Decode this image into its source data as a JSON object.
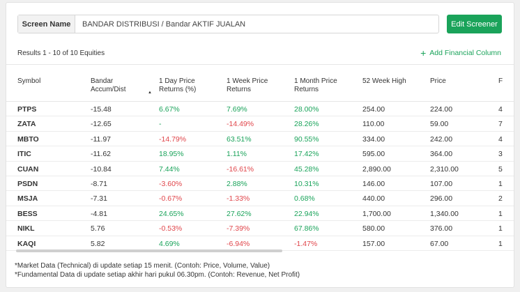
{
  "screen": {
    "label": "Screen Name",
    "value": "BANDAR DISTRIBUSI / Bandar AKTIF JUALAN",
    "edit_button": "Edit Screener"
  },
  "results_text": "Results 1 - 10 of 10 Equities",
  "add_column_label": "Add Financial Column",
  "table": {
    "headers": {
      "symbol": "Symbol",
      "bandar_1": "Bandar",
      "bandar_2": "Accum/Dist",
      "d1_1": "1 Day Price",
      "d1_2": "Returns (%)",
      "w1_1": "1 Week Price",
      "w1_2": "Returns",
      "m1_1": "1 Month Price",
      "m1_2": "Returns",
      "high": "52 Week High",
      "price": "Price",
      "extra": "F"
    },
    "rows": [
      {
        "symbol": "PTPS",
        "bandar": "-15.48",
        "d1": "6.67%",
        "w1": "7.69%",
        "m1": "28.00%",
        "high": "254.00",
        "price": "224.00",
        "extra": "4"
      },
      {
        "symbol": "ZATA",
        "bandar": "-12.65",
        "d1": "-",
        "w1": "-14.49%",
        "m1": "28.26%",
        "high": "110.00",
        "price": "59.00",
        "extra": "7"
      },
      {
        "symbol": "MBTO",
        "bandar": "-11.97",
        "d1": "-14.79%",
        "w1": "63.51%",
        "m1": "90.55%",
        "high": "334.00",
        "price": "242.00",
        "extra": "4"
      },
      {
        "symbol": "ITIC",
        "bandar": "-11.62",
        "d1": "18.95%",
        "w1": "1.11%",
        "m1": "17.42%",
        "high": "595.00",
        "price": "364.00",
        "extra": "3"
      },
      {
        "symbol": "CUAN",
        "bandar": "-10.84",
        "d1": "7.44%",
        "w1": "-16.61%",
        "m1": "45.28%",
        "high": "2,890.00",
        "price": "2,310.00",
        "extra": "5"
      },
      {
        "symbol": "PSDN",
        "bandar": "-8.71",
        "d1": "-3.60%",
        "w1": "2.88%",
        "m1": "10.31%",
        "high": "146.00",
        "price": "107.00",
        "extra": "1"
      },
      {
        "symbol": "MSJA",
        "bandar": "-7.31",
        "d1": "-0.67%",
        "w1": "-1.33%",
        "m1": "0.68%",
        "high": "440.00",
        "price": "296.00",
        "extra": "2"
      },
      {
        "symbol": "BESS",
        "bandar": "-4.81",
        "d1": "24.65%",
        "w1": "27.62%",
        "m1": "22.94%",
        "high": "1,700.00",
        "price": "1,340.00",
        "extra": "1"
      },
      {
        "symbol": "NIKL",
        "bandar": "5.76",
        "d1": "-0.53%",
        "w1": "-7.39%",
        "m1": "67.86%",
        "high": "580.00",
        "price": "376.00",
        "extra": "1"
      },
      {
        "symbol": "KAQI",
        "bandar": "5.82",
        "d1": "4.69%",
        "w1": "-6.94%",
        "m1": "-1.47%",
        "high": "157.00",
        "price": "67.00",
        "extra": "1"
      }
    ]
  },
  "notes": [
    "*Market Data (Technical) di update setiap 15 menit. (Contoh: Price, Volume, Value)",
    "*Fundamental Data di update setiap akhir hari pukul 06.30pm. (Contoh: Revenue, Net Profit)"
  ],
  "colors": {
    "positive": "#1aa35a",
    "negative": "#e0454a",
    "accent": "#1aa35a"
  }
}
